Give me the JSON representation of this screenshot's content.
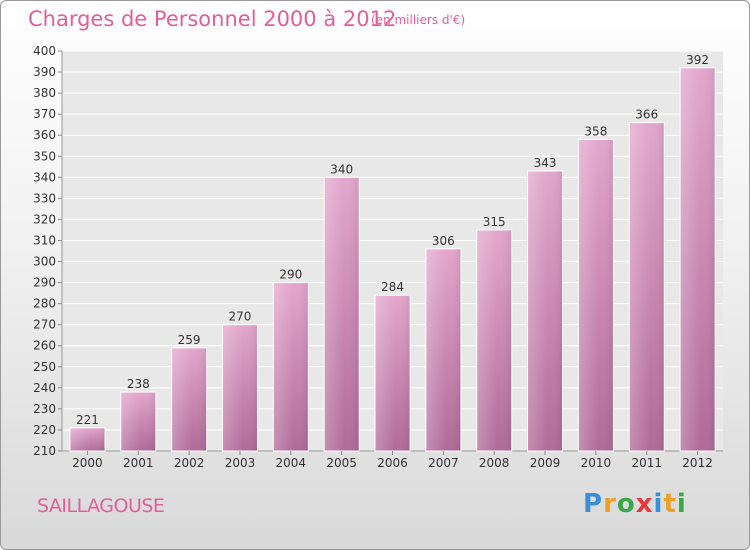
{
  "chart_data": {
    "type": "bar",
    "title": "Charges de Personnel 2000 à 2012",
    "subtitle": "(en milliers d'€)",
    "categories": [
      "2000",
      "2001",
      "2002",
      "2003",
      "2004",
      "2005",
      "2006",
      "2007",
      "2008",
      "2009",
      "2010",
      "2011",
      "2012"
    ],
    "values": [
      221,
      238,
      259,
      270,
      290,
      340,
      284,
      306,
      315,
      343,
      358,
      366,
      392
    ],
    "ylim": [
      210,
      400
    ],
    "yticks": [
      210,
      220,
      230,
      240,
      250,
      260,
      270,
      280,
      290,
      300,
      310,
      320,
      330,
      340,
      350,
      360,
      370,
      380,
      390,
      400
    ],
    "grid": true,
    "bar_color": "#d68fbb",
    "xlabel": "",
    "ylabel": ""
  },
  "footer": {
    "commune": "SAILLAGOUSE",
    "brand_letters": [
      "P",
      "r",
      "o",
      "x",
      "i",
      "t",
      "i"
    ],
    "brand_colors": [
      "#3a8fd8",
      "#f0a020",
      "#3aa848",
      "#e8363c",
      "#3a8fd8",
      "#f0a020",
      "#3aa848"
    ]
  }
}
